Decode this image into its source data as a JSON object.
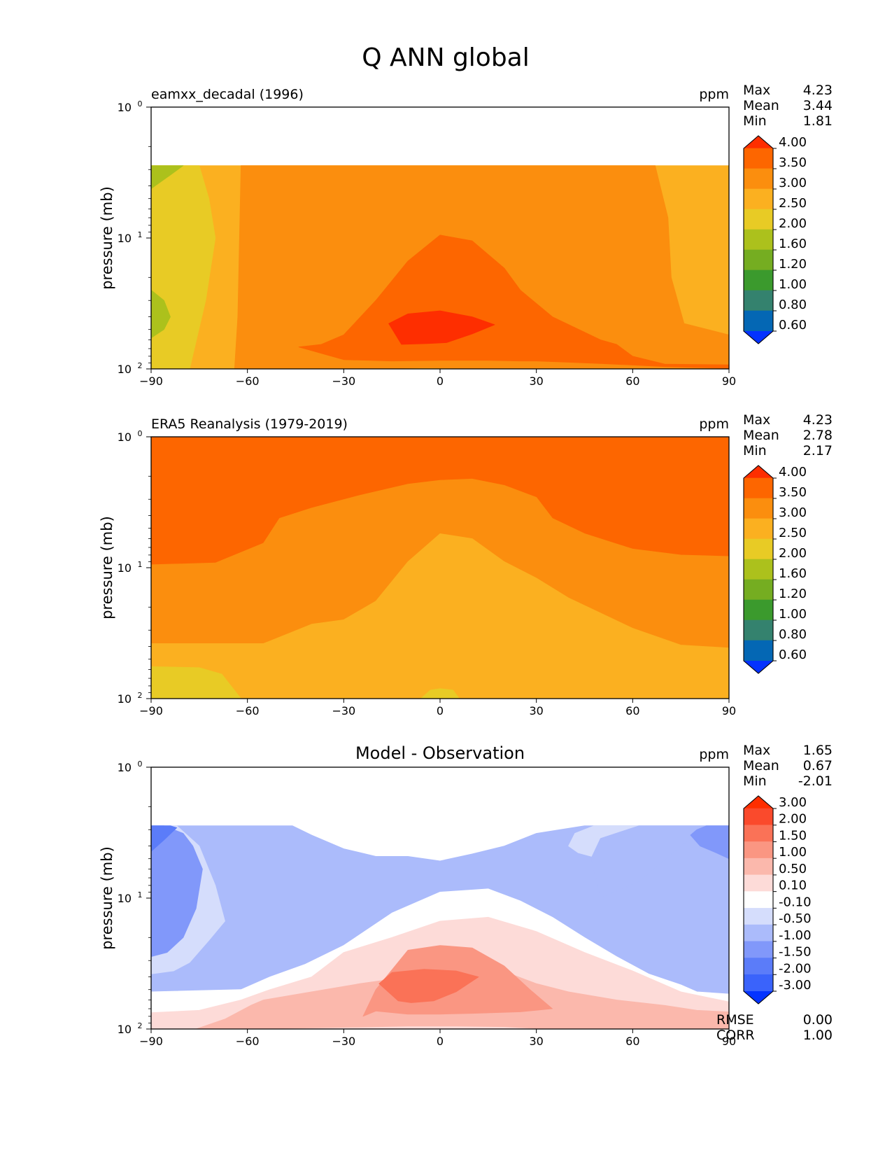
{
  "title": "Q ANN global",
  "units": "ppm",
  "stat_labels": {
    "max": "Max",
    "mean": "Mean",
    "min": "Min",
    "rmse": "RMSE",
    "corr": "CORR"
  },
  "chart_data": [
    {
      "type": "contour",
      "subtitle": "eamxx_decadal (1996)",
      "units": "ppm",
      "ylabel": "pressure (mb)",
      "xlim": [
        -90,
        90
      ],
      "xticks": [
        "−90",
        "−60",
        "−30",
        "0",
        "30",
        "60",
        "90"
      ],
      "xtick_values": [
        -90,
        -60,
        -30,
        0,
        30,
        60,
        90
      ],
      "yticks": [
        {
          "base": "10",
          "exp": "0"
        },
        {
          "base": "10",
          "exp": "1"
        },
        {
          "base": "10",
          "exp": "2"
        }
      ],
      "ylim_mb": [
        100,
        1
      ],
      "stats": {
        "max": "4.23",
        "mean": "3.44",
        "min": "1.81"
      },
      "colorbar": {
        "levels": [
          "0.60",
          "0.80",
          "1.00",
          "1.20",
          "1.60",
          "2.00",
          "2.50",
          "3.00",
          "3.50",
          "4.00"
        ],
        "colors": [
          "#0432ff",
          "#0467b4",
          "#34826e",
          "#3b9a2d",
          "#75ad21",
          "#acc11c",
          "#e8cb25",
          "#fbb020",
          "#fb8e0e",
          "#fd6600",
          "#fe2e00"
        ]
      },
      "contours": [
        {
          "c": 7,
          "x": [
            -90,
            -90,
            90,
            90
          ],
          "p": [
            100,
            2.8,
            2.8,
            100
          ]
        },
        {
          "c": 6,
          "x": [
            -90,
            -78,
            -73,
            -70,
            -72,
            -75,
            -90
          ],
          "p": [
            100,
            100,
            30,
            10,
            5,
            2.8,
            2.8
          ]
        },
        {
          "c": 5,
          "x": [
            -90,
            -84,
            -80,
            -90
          ],
          "p": [
            4.2,
            3.3,
            2.8,
            2.8
          ]
        },
        {
          "c": 5,
          "x": [
            -90,
            -86,
            -84,
            -86,
            -90
          ],
          "p": [
            58,
            50,
            40,
            30,
            25
          ]
        },
        {
          "c": 8,
          "x": [
            -64,
            -63,
            -62,
            67,
            71,
            72,
            76,
            90,
            90,
            70,
            40,
            10,
            -5,
            -20,
            -64
          ],
          "p": [
            100,
            40,
            2.8,
            2.8,
            7,
            20,
            45,
            55,
            100,
            100,
            100,
            99,
            98,
            100,
            100
          ]
        },
        {
          "c": 9,
          "x": [
            -44,
            -37,
            -30,
            -20,
            -10,
            0,
            10,
            20,
            25,
            35,
            50,
            55,
            60,
            70,
            90,
            90,
            70,
            50,
            40,
            30,
            25,
            15,
            0,
            -15,
            -30,
            -44
          ],
          "p": [
            68,
            65,
            55,
            30,
            15,
            9.5,
            10.5,
            17,
            25,
            40,
            60,
            65,
            80,
            92,
            93,
            99,
            96,
            91,
            89,
            87,
            87,
            86,
            86,
            87,
            85,
            68
          ]
        },
        {
          "c": 10,
          "x": [
            -16,
            -10,
            0,
            10,
            17,
            10,
            2,
            -4,
            -12,
            -16
          ],
          "p": [
            45,
            38,
            36,
            40,
            46,
            54,
            63,
            64,
            65,
            45
          ]
        }
      ]
    },
    {
      "type": "contour",
      "subtitle": "ERA5 Reanalysis (1979-2019)",
      "units": "ppm",
      "ylabel": "pressure (mb)",
      "xlim": [
        -90,
        90
      ],
      "xticks": [
        "−90",
        "−60",
        "−30",
        "0",
        "30",
        "60",
        "90"
      ],
      "xtick_values": [
        -90,
        -60,
        -30,
        0,
        30,
        60,
        90
      ],
      "yticks": [
        {
          "base": "10",
          "exp": "0"
        },
        {
          "base": "10",
          "exp": "1"
        },
        {
          "base": "10",
          "exp": "2"
        }
      ],
      "ylim_mb": [
        100,
        1
      ],
      "stats": {
        "max": "4.23",
        "mean": "2.78",
        "min": "2.17"
      },
      "colorbar": {
        "levels": [
          "0.60",
          "0.80",
          "1.00",
          "1.20",
          "1.60",
          "2.00",
          "2.50",
          "3.00",
          "3.50",
          "4.00"
        ],
        "colors": [
          "#0432ff",
          "#0467b4",
          "#34826e",
          "#3b9a2d",
          "#75ad21",
          "#acc11c",
          "#e8cb25",
          "#fbb020",
          "#fb8e0e",
          "#fd6600",
          "#fe2e00"
        ]
      },
      "contours": [
        {
          "c": 9,
          "x": [
            -90,
            -90,
            90,
            90
          ],
          "p": [
            100,
            1,
            1,
            100
          ]
        },
        {
          "c": 8,
          "x": [
            -90,
            -70,
            -55,
            -50,
            -40,
            -25,
            -10,
            0,
            10,
            20,
            30,
            35,
            45,
            60,
            75,
            90,
            90,
            -90
          ],
          "p": [
            9.5,
            9.2,
            6.5,
            4.2,
            3.5,
            2.8,
            2.3,
            2.15,
            2.1,
            2.35,
            2.9,
            4.2,
            5.5,
            7.2,
            8,
            8.2,
            100,
            100
          ]
        },
        {
          "c": 7,
          "x": [
            -90,
            -70,
            -55,
            -40,
            -30,
            -20,
            -10,
            0,
            10,
            20,
            30,
            40,
            60,
            75,
            90,
            90,
            -90
          ],
          "p": [
            38,
            38,
            38,
            27,
            25,
            18,
            9,
            5.5,
            6,
            9,
            12,
            17,
            29,
            39,
            41,
            100,
            100
          ]
        },
        {
          "c": 6,
          "x": [
            -90,
            -75,
            -68,
            -62,
            -90
          ],
          "p": [
            57,
            58,
            65,
            100,
            100
          ]
        },
        {
          "c": 6,
          "x": [
            -6,
            -3,
            0,
            4,
            6
          ],
          "p": [
            100,
            86,
            84,
            86,
            100
          ]
        }
      ]
    },
    {
      "type": "contour",
      "subtitle": "Model - Observation",
      "units": "ppm",
      "ylabel": "pressure (mb)",
      "xlim": [
        -90,
        90
      ],
      "xticks": [
        "−90",
        "−60",
        "−30",
        "0",
        "30",
        "60",
        "90"
      ],
      "xtick_values": [
        -90,
        -60,
        -30,
        0,
        30,
        60,
        90
      ],
      "yticks": [
        {
          "base": "10",
          "exp": "0"
        },
        {
          "base": "10",
          "exp": "1"
        },
        {
          "base": "10",
          "exp": "2"
        }
      ],
      "ylim_mb": [
        100,
        1
      ],
      "stats": {
        "max": "1.65",
        "mean": "0.67",
        "min": "-2.01",
        "rmse": "0.00",
        "corr": "1.00"
      },
      "colorbar": {
        "levels": [
          "-3.00",
          "-2.00",
          "-1.50",
          "-1.00",
          "-0.50",
          "-0.10",
          "0.10",
          "0.50",
          "1.00",
          "1.50",
          "2.00",
          "3.00"
        ],
        "colors": [
          "#0433ff",
          "#3a63fb",
          "#5b7cf9",
          "#8198fa",
          "#abbbfb",
          "#d5ddfc",
          "#ffffff",
          "#fddbd8",
          "#fbb8ac",
          "#fa9682",
          "#fa7257",
          "#fa4a2c",
          "#fe2e00"
        ]
      },
      "contours": [
        {
          "c": 4,
          "x": [
            -90,
            -90,
            -46,
            -40,
            -30,
            -20,
            -10,
            0,
            10,
            20,
            30,
            45,
            90,
            90
          ],
          "p": [
            100,
            2.8,
            2.8,
            3.3,
            4.2,
            4.8,
            4.8,
            5.2,
            4.6,
            4,
            3.2,
            2.8,
            2.8,
            100
          ]
        },
        {
          "c": 6,
          "x": [
            -90,
            -90,
            -62,
            -53,
            -42,
            -30,
            -15,
            0,
            15,
            25,
            35,
            45,
            55,
            65,
            75,
            80,
            90,
            90
          ],
          "p": [
            100,
            52,
            50,
            40,
            32,
            23,
            13,
            9,
            8.5,
            10.5,
            14,
            20,
            28,
            38,
            46,
            52,
            54,
            100
          ]
        },
        {
          "c": 7,
          "x": [
            -90,
            -90,
            -75,
            -62,
            -53,
            -40,
            -30,
            -15,
            0,
            15,
            30,
            45,
            60,
            75,
            90,
            90
          ],
          "p": [
            100,
            75,
            72,
            60,
            50,
            40,
            26,
            20,
            15,
            14,
            18,
            26,
            36,
            52,
            62,
            100
          ]
        },
        {
          "c": 8,
          "x": [
            -90,
            -76,
            -67,
            -59,
            -55,
            -42,
            -25,
            -10,
            0,
            10,
            22,
            30,
            40,
            55,
            70,
            80,
            90,
            90
          ],
          "p": [
            100,
            100,
            84,
            66,
            60,
            53,
            45,
            40,
            36,
            33,
            38,
            45,
            52,
            60,
            66,
            72,
            74,
            100
          ]
        },
        {
          "c": 9,
          "x": [
            -24,
            -20,
            -10,
            0,
            10,
            20,
            28,
            35,
            25,
            10,
            0,
            -10,
            -20,
            -24
          ],
          "p": [
            80,
            50,
            25,
            23,
            24,
            33,
            50,
            70,
            74,
            76,
            77,
            77,
            73,
            80
          ]
        },
        {
          "c": 10,
          "x": [
            -19,
            -15,
            -5,
            5,
            12,
            5,
            -2,
            -9,
            -13,
            -19
          ],
          "p": [
            45,
            37,
            35,
            36,
            40,
            52,
            61,
            63,
            61,
            45
          ]
        },
        {
          "c": 7,
          "x": [
            -50,
            -30,
            -10,
            5,
            20,
            30,
            20,
            0,
            -20,
            -40,
            -50
          ],
          "p": [
            100,
            98,
            96,
            96,
            97,
            100,
            100,
            100,
            100,
            100,
            100
          ]
        },
        {
          "c": 5,
          "x": [
            -90,
            -90,
            -83,
            -78,
            -72,
            -67,
            -70,
            -75,
            -82,
            -90
          ],
          "p": [
            100,
            38,
            36,
            31,
            21,
            15,
            8,
            4,
            2.8,
            2.8
          ]
        },
        {
          "c": 3,
          "x": [
            -90,
            -90,
            -85,
            -80,
            -76,
            -74,
            -77,
            -80,
            -86,
            -90
          ],
          "p": [
            43,
            28,
            26,
            20,
            12,
            6,
            4,
            3.2,
            2.8,
            2.8
          ]
        },
        {
          "c": 2,
          "x": [
            -90,
            -90,
            -86,
            -82,
            -84,
            -90
          ],
          "p": [
            13,
            4.4,
            3.6,
            2.9,
            2.8,
            2.8
          ]
        },
        {
          "c": 5,
          "x": [
            90,
            90,
            84,
            76,
            66,
            55,
            43,
            40,
            42,
            48,
            58,
            70,
            80,
            90
          ],
          "p": [
            57,
            2.8,
            2.8,
            3.2,
            4.4,
            5.4,
            4.5,
            4,
            3.2,
            2.8,
            2.8,
            2.8,
            2.8,
            2.8
          ]
        },
        {
          "c": 4,
          "x": [
            90,
            90,
            84,
            75,
            62,
            50,
            47,
            50,
            62,
            75,
            90
          ],
          "p": [
            45,
            2.8,
            2.8,
            4,
            7.5,
            10,
            5,
            3.5,
            2.8,
            2.8,
            2.8
          ]
        },
        {
          "c": 3,
          "x": [
            90,
            90,
            83,
            80,
            78,
            81,
            86,
            90
          ],
          "p": [
            5,
            2.8,
            2.8,
            3,
            3.3,
            4,
            4.5,
            5
          ]
        }
      ]
    }
  ]
}
